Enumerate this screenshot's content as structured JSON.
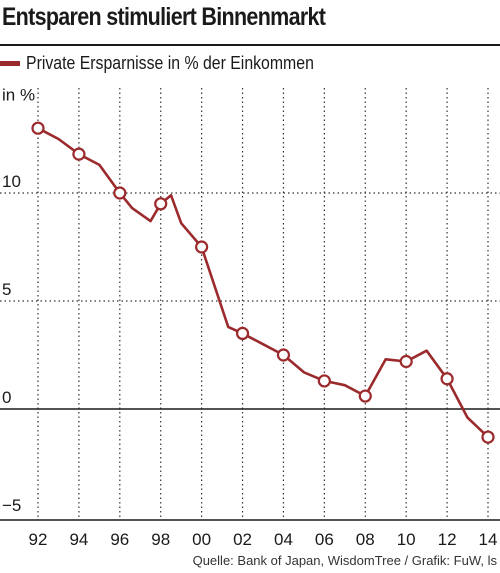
{
  "chart_data": {
    "type": "line",
    "title": "Entsparen stimuliert Binnenmarkt",
    "ylabel": "in %",
    "source": "Quelle: Bank of Japan, WisdomTree / Grafik: FuW, ls",
    "legend_placement": "top-left",
    "grid": "horizontal dotted",
    "xlim": [
      1992,
      2014
    ],
    "ylim": [
      -5,
      14
    ],
    "x_tick_labels": [
      "92",
      "94",
      "96",
      "98",
      "00",
      "02",
      "04",
      "06",
      "08",
      "10",
      "12",
      "14"
    ],
    "y_tick_labels": [
      "−5",
      "0",
      "5",
      "10",
      "in %"
    ],
    "series": [
      {
        "name": "Private Ersparnisse in % der Einkommen",
        "color": "#9b2a2c",
        "x": [
          1992,
          1993,
          1994,
          1995,
          1996,
          1996.6,
          1997.5,
          1998,
          1998.5,
          1999,
          2000,
          2001.3,
          2002,
          2003,
          2004,
          2005,
          2006,
          2007,
          2008,
          2009,
          2010,
          2011,
          2012,
          2013,
          2014
        ],
        "y": [
          13.0,
          12.5,
          11.8,
          11.3,
          10.0,
          9.3,
          8.7,
          9.5,
          9.9,
          8.6,
          7.5,
          3.8,
          3.5,
          3.0,
          2.5,
          1.7,
          1.3,
          1.1,
          0.6,
          2.3,
          2.2,
          2.7,
          1.4,
          -0.4,
          -1.3
        ],
        "marker_x": [
          1992,
          1994,
          1996,
          1998,
          2000,
          2002,
          2004,
          2006,
          2008,
          2010,
          2012,
          2014
        ]
      }
    ]
  }
}
